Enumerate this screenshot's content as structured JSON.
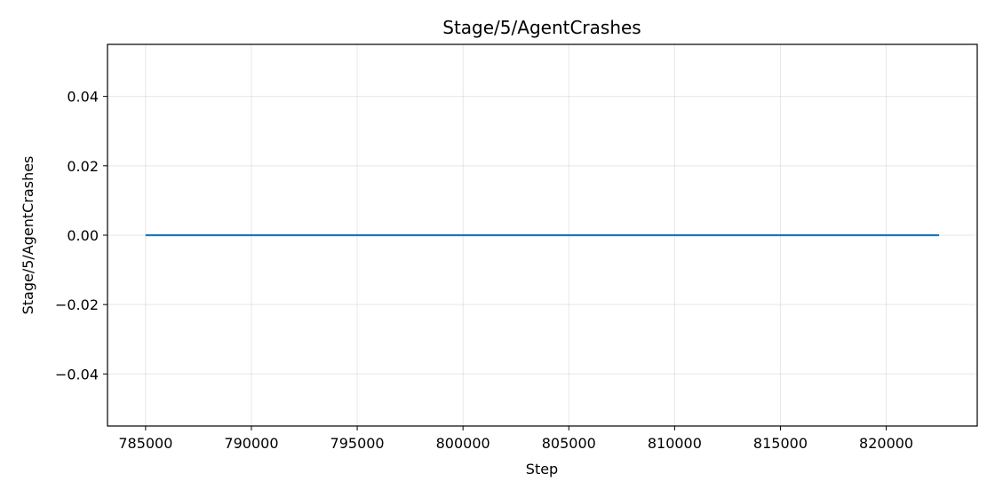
{
  "chart_data": {
    "type": "line",
    "title": "Stage/5/AgentCrashes",
    "xlabel": "Step",
    "ylabel": "Stage/5/AgentCrashes",
    "xlim": [
      783200,
      824300
    ],
    "ylim": [
      -0.055,
      0.055
    ],
    "x_ticks": [
      785000,
      790000,
      795000,
      800000,
      805000,
      810000,
      815000,
      820000
    ],
    "x_tick_labels": [
      "785000",
      "790000",
      "795000",
      "800000",
      "805000",
      "810000",
      "815000",
      "820000"
    ],
    "y_ticks": [
      -0.04,
      -0.02,
      0.0,
      0.02,
      0.04
    ],
    "y_tick_labels": [
      "−0.04",
      "−0.02",
      "0.00",
      "0.02",
      "0.04"
    ],
    "grid": true,
    "series": [
      {
        "color": "#1f77b4",
        "x": [
          785000,
          822500
        ],
        "y": [
          0.0,
          0.0
        ]
      }
    ]
  }
}
